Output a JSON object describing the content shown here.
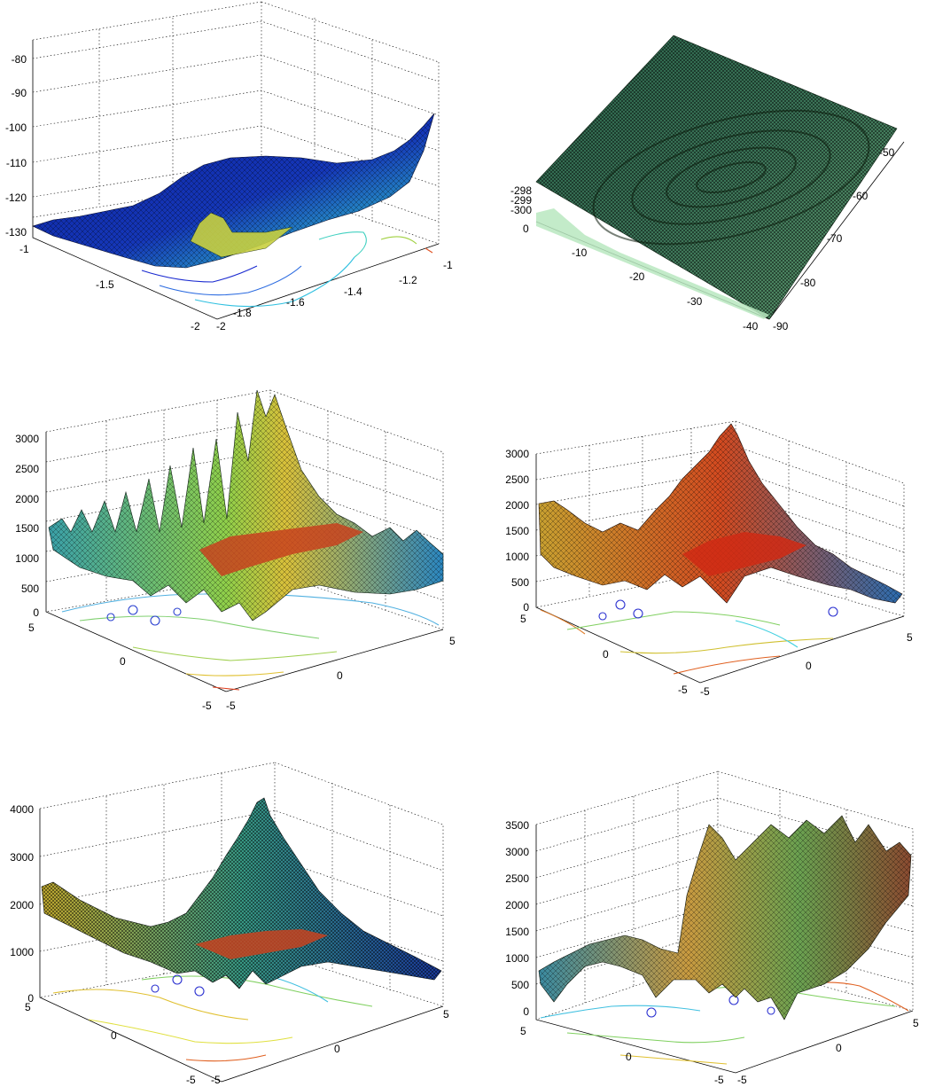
{
  "chart_data": [
    {
      "type": "surface",
      "grid": true,
      "zlim": [
        -130,
        -80
      ],
      "ztick_labels": [
        "-80",
        "-90",
        "-100",
        "-110",
        "-120",
        "-130"
      ],
      "left_floor_labels": [
        "-1",
        "-1.5",
        "-2"
      ],
      "right_floor_labels": [
        "-2",
        "-1.8",
        "-1.6",
        "-1.4",
        "-1.2",
        "-1"
      ]
    },
    {
      "type": "surface",
      "grid": true,
      "zlim": [
        -300,
        -298
      ],
      "ztick_labels": [
        "-298",
        "-299",
        "-300"
      ],
      "left_floor_labels": [
        "0",
        "-10",
        "-20",
        "-30",
        "-40"
      ],
      "right_floor_labels": [
        "-90",
        "-80",
        "-70",
        "-60",
        "-50"
      ]
    },
    {
      "type": "surface",
      "grid": true,
      "zlim": [
        0,
        3000
      ],
      "ztick_labels": [
        "3000",
        "2500",
        "2000",
        "1500",
        "1000",
        "500",
        "0"
      ],
      "left_floor_labels": [
        "5",
        "0",
        "-5"
      ],
      "right_floor_labels": [
        "-5",
        "0",
        "5"
      ]
    },
    {
      "type": "surface",
      "grid": true,
      "zlim": [
        0,
        3000
      ],
      "ztick_labels": [
        "3000",
        "2500",
        "2000",
        "1500",
        "1000",
        "500",
        "0"
      ],
      "left_floor_labels": [
        "5",
        "0",
        "-5"
      ],
      "right_floor_labels": [
        "-5",
        "0",
        "5"
      ]
    },
    {
      "type": "surface",
      "grid": true,
      "zlim": [
        0,
        4000
      ],
      "ztick_labels": [
        "4000",
        "3000",
        "2000",
        "1000",
        "0"
      ],
      "left_floor_labels": [
        "5",
        "0",
        "-5"
      ],
      "right_floor_labels": [
        "-5",
        "0",
        "5"
      ]
    },
    {
      "type": "surface",
      "grid": true,
      "zlim": [
        0,
        3500
      ],
      "ztick_labels": [
        "3500",
        "3000",
        "2500",
        "2000",
        "1500",
        "1000",
        "500",
        "0"
      ],
      "left_floor_labels": [
        "5",
        "0",
        "-5"
      ],
      "right_floor_labels": [
        "-5",
        "0",
        "5"
      ]
    }
  ]
}
